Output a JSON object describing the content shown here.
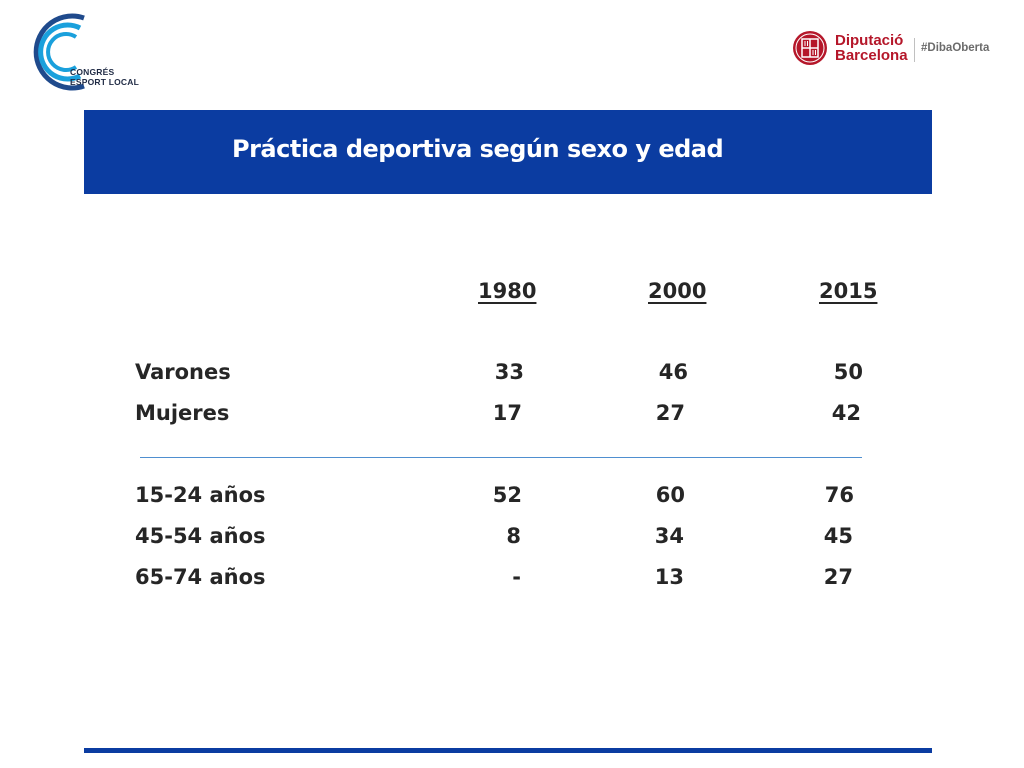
{
  "logo_left": {
    "line1": "CONGRÉS",
    "line2": "ESPORT LOCAL",
    "colors": {
      "dark": "#1f4a8c",
      "light": "#1aa0dc"
    }
  },
  "logo_right": {
    "name_line1": "Diputació",
    "name_line2": "Barcelona",
    "hashtag": "#DibaOberta",
    "color": "#b5172a"
  },
  "title": "Práctica deportiva según sexo y edad",
  "title_band_color": "#0b3ca1",
  "table": {
    "years": [
      "1980",
      "2000",
      "2015"
    ],
    "group_sex": [
      {
        "label": "Varones",
        "values": [
          "33",
          "46",
          "50"
        ]
      },
      {
        "label": "Mujeres",
        "values": [
          "17",
          "27",
          "42"
        ]
      }
    ],
    "group_age": [
      {
        "label": "15-24 años",
        "values": [
          "52",
          "60",
          "76"
        ]
      },
      {
        "label": "45-54 años",
        "values": [
          "8",
          "34",
          "45"
        ]
      },
      {
        "label": "65-74 años",
        "values": [
          "-",
          "13",
          "27"
        ]
      }
    ]
  }
}
